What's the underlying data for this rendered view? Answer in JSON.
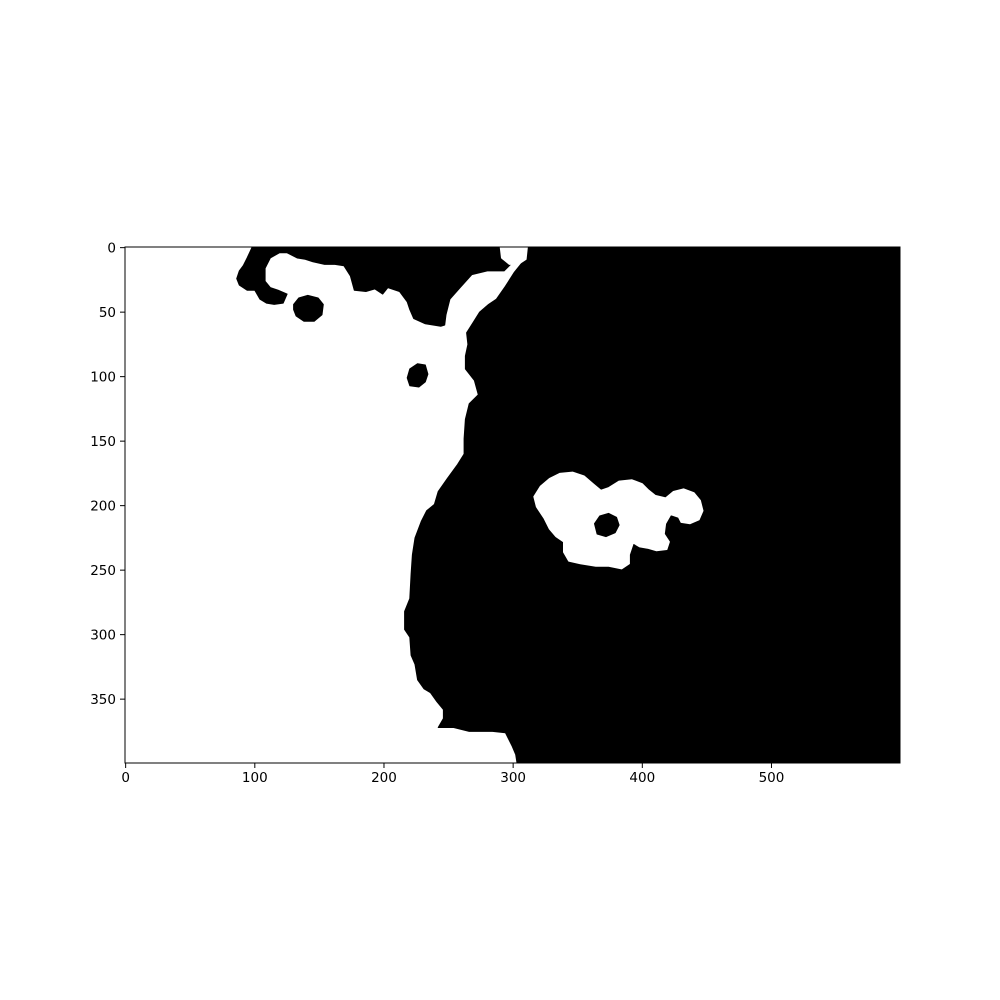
{
  "chart_data": {
    "type": "heatmap",
    "title": "",
    "xlabel": "",
    "ylabel": "",
    "image_size": [
      600,
      400
    ],
    "xlim": [
      -0.5,
      599.5
    ],
    "ylim": [
      399.5,
      -0.5
    ],
    "y_inverted": true,
    "grid": false,
    "colormap": "binary",
    "colors": {
      "foreground": "#000000",
      "background": "#ffffff"
    },
    "x_ticks": [
      0,
      100,
      200,
      300,
      400,
      500
    ],
    "y_ticks": [
      0,
      50,
      100,
      150,
      200,
      250,
      300,
      350
    ],
    "regions": [
      {
        "name": "black-main-region",
        "fill": "#000000",
        "outline": [
          [
            302,
            -0.5
          ],
          [
            599.5,
            -0.5
          ],
          [
            599.5,
            399.5
          ],
          [
            303,
            399.5
          ],
          [
            302,
            393
          ],
          [
            299,
            386
          ],
          [
            294,
            376
          ],
          [
            284,
            375
          ],
          [
            266,
            375
          ],
          [
            254,
            372
          ],
          [
            242,
            372
          ],
          [
            246,
            365
          ],
          [
            246,
            358
          ],
          [
            241,
            352
          ],
          [
            236,
            345
          ],
          [
            231,
            342
          ],
          [
            226,
            335
          ],
          [
            224,
            323
          ],
          [
            221,
            316
          ],
          [
            220,
            302
          ],
          [
            216,
            296
          ],
          [
            216,
            282
          ],
          [
            220,
            272
          ],
          [
            221,
            253
          ],
          [
            222,
            238
          ],
          [
            224,
            225
          ],
          [
            229,
            212
          ],
          [
            233,
            204
          ],
          [
            239,
            199
          ],
          [
            242,
            189
          ],
          [
            249,
            179
          ],
          [
            257,
            168
          ],
          [
            262,
            160
          ],
          [
            262,
            148
          ],
          [
            263,
            133
          ],
          [
            266,
            121
          ],
          [
            273,
            114
          ],
          [
            270,
            103
          ],
          [
            263,
            94
          ],
          [
            263,
            84
          ],
          [
            265,
            75
          ],
          [
            264,
            66
          ],
          [
            269,
            58
          ],
          [
            274,
            50
          ],
          [
            281,
            44
          ],
          [
            287,
            40
          ],
          [
            294,
            30
          ],
          [
            301,
            19
          ],
          [
            309,
            9
          ],
          [
            311,
            2
          ],
          [
            302,
            -0.5
          ]
        ]
      },
      {
        "name": "black-top-band",
        "fill": "#000000",
        "outline": [
          [
            98,
            -0.5
          ],
          [
            290,
            -0.5
          ],
          [
            291,
            9
          ],
          [
            298,
            13
          ],
          [
            293,
            18
          ],
          [
            280,
            18
          ],
          [
            268,
            21
          ],
          [
            259,
            31
          ],
          [
            251,
            40
          ],
          [
            248,
            52
          ],
          [
            247,
            60
          ],
          [
            244,
            61
          ],
          [
            232,
            59
          ],
          [
            223,
            55
          ],
          [
            220,
            48
          ],
          [
            218,
            42
          ],
          [
            212,
            34
          ],
          [
            203,
            31
          ],
          [
            199,
            36
          ],
          [
            193,
            32
          ],
          [
            186,
            34
          ],
          [
            177,
            33
          ],
          [
            174,
            22
          ],
          [
            169,
            14
          ],
          [
            162,
            13
          ],
          [
            154,
            13
          ],
          [
            145,
            11
          ],
          [
            139,
            9
          ],
          [
            133,
            8
          ],
          [
            125,
            4
          ],
          [
            119,
            4
          ],
          [
            112,
            8
          ],
          [
            108,
            16
          ],
          [
            108,
            26
          ],
          [
            112,
            31
          ],
          [
            118,
            33
          ],
          [
            125,
            36
          ],
          [
            122,
            43
          ],
          [
            115,
            44
          ],
          [
            109,
            43
          ],
          [
            104,
            40
          ],
          [
            100,
            33
          ],
          [
            94,
            33
          ],
          [
            88,
            29
          ],
          [
            86,
            24
          ],
          [
            88,
            18
          ],
          [
            91,
            14
          ],
          [
            94,
            8
          ],
          [
            98,
            -0.5
          ]
        ]
      },
      {
        "name": "black-small-blob-topleft",
        "fill": "#000000",
        "outline": [
          [
            130,
            44
          ],
          [
            134,
            39
          ],
          [
            141,
            37
          ],
          [
            149,
            39
          ],
          [
            153,
            44
          ],
          [
            152,
            52
          ],
          [
            146,
            57
          ],
          [
            138,
            57
          ],
          [
            132,
            53
          ],
          [
            130,
            48
          ]
        ]
      },
      {
        "name": "black-small-blob-mid",
        "fill": "#000000",
        "outline": [
          [
            218,
            101
          ],
          [
            220,
            94
          ],
          [
            226,
            90
          ],
          [
            232,
            91
          ],
          [
            234,
            98
          ],
          [
            232,
            104
          ],
          [
            227,
            108
          ],
          [
            220,
            107
          ]
        ]
      },
      {
        "name": "white-island",
        "fill": "#ffffff",
        "outline": [
          [
            316,
            193
          ],
          [
            321,
            185
          ],
          [
            328,
            179
          ],
          [
            336,
            175
          ],
          [
            346,
            174
          ],
          [
            355,
            177
          ],
          [
            362,
            183
          ],
          [
            368,
            188
          ],
          [
            374,
            186
          ],
          [
            382,
            181
          ],
          [
            392,
            180
          ],
          [
            400,
            183
          ],
          [
            405,
            188
          ],
          [
            410,
            192
          ],
          [
            418,
            194
          ],
          [
            424,
            189
          ],
          [
            432,
            187
          ],
          [
            440,
            190
          ],
          [
            445,
            196
          ],
          [
            447,
            204
          ],
          [
            444,
            211
          ],
          [
            437,
            214
          ],
          [
            430,
            213
          ],
          [
            428,
            209
          ],
          [
            422,
            207
          ],
          [
            418,
            214
          ],
          [
            417,
            222
          ],
          [
            421,
            228
          ],
          [
            419,
            234
          ],
          [
            411,
            235
          ],
          [
            404,
            233
          ],
          [
            398,
            232
          ],
          [
            393,
            229
          ],
          [
            390,
            238
          ],
          [
            390,
            245
          ],
          [
            384,
            249
          ],
          [
            374,
            247
          ],
          [
            364,
            247
          ],
          [
            352,
            245
          ],
          [
            343,
            243
          ],
          [
            339,
            236
          ],
          [
            339,
            228
          ],
          [
            333,
            224
          ],
          [
            328,
            218
          ],
          [
            324,
            210
          ],
          [
            318,
            201
          ]
        ]
      },
      {
        "name": "black-hole-in-island",
        "fill": "#000000",
        "outline": [
          [
            363,
            214
          ],
          [
            367,
            208
          ],
          [
            374,
            206
          ],
          [
            380,
            209
          ],
          [
            382,
            215
          ],
          [
            379,
            221
          ],
          [
            372,
            224
          ],
          [
            365,
            222
          ]
        ]
      },
      {
        "name": "white-corner-notch",
        "fill": "#ffffff",
        "outline": [
          [
            290,
            -0.5
          ],
          [
            311,
            -0.5
          ],
          [
            310,
            9
          ],
          [
            304,
            13
          ],
          [
            297,
            13
          ],
          [
            291,
            8
          ]
        ]
      }
    ]
  }
}
